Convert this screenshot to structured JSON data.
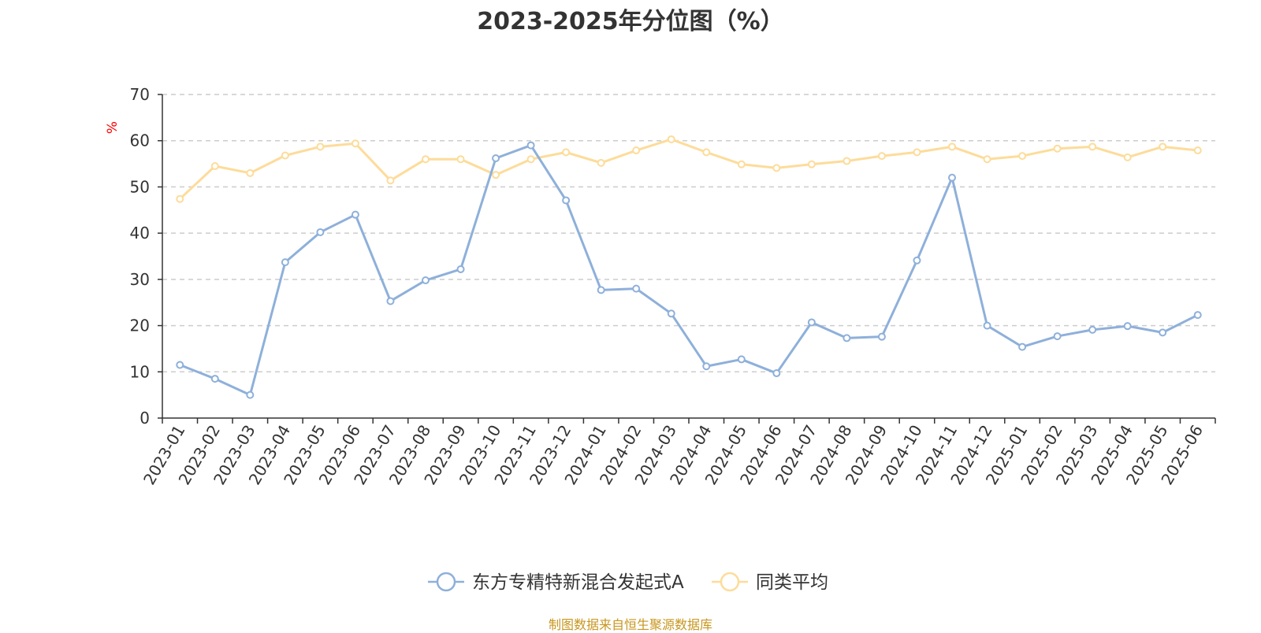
{
  "chart_data": {
    "type": "line",
    "title": "2023-2025年分位图（%）",
    "ylabel": "%",
    "xlabel": "",
    "ylim": [
      0,
      70
    ],
    "yticks": [
      0,
      10,
      20,
      30,
      40,
      50,
      60,
      70
    ],
    "grid": true,
    "legend_position": "bottom",
    "categories": [
      "2023-01",
      "2023-02",
      "2023-03",
      "2023-04",
      "2023-05",
      "2023-06",
      "2023-07",
      "2023-08",
      "2023-09",
      "2023-10",
      "2023-11",
      "2023-12",
      "2024-01",
      "2024-02",
      "2024-03",
      "2024-04",
      "2024-05",
      "2024-06",
      "2024-07",
      "2024-08",
      "2024-09",
      "2024-10",
      "2024-11",
      "2024-12",
      "2025-01",
      "2025-02",
      "2025-03",
      "2025-04",
      "2025-05",
      "2025-06"
    ],
    "series": [
      {
        "name": "东方专精特新混合发起式A",
        "color": "#8eb0da",
        "values": [
          11.5,
          8.5,
          5.0,
          33.7,
          40.2,
          44.0,
          25.3,
          29.8,
          32.2,
          56.2,
          59.0,
          47.1,
          27.7,
          28.0,
          22.6,
          11.2,
          12.7,
          9.7,
          20.7,
          17.3,
          17.6,
          34.1,
          52.0,
          20.0,
          15.4,
          17.7,
          19.1,
          19.9,
          18.5,
          22.3
        ]
      },
      {
        "name": "同类平均",
        "color": "#fddc9a",
        "values": [
          47.4,
          54.5,
          53.0,
          56.8,
          58.7,
          59.4,
          51.4,
          56.0,
          56.0,
          52.6,
          56.0,
          57.5,
          55.2,
          57.9,
          60.3,
          57.5,
          54.9,
          54.1,
          54.9,
          55.6,
          56.7,
          57.5,
          58.7,
          56.0,
          56.7,
          58.3,
          58.7,
          56.4,
          58.7,
          57.9
        ]
      }
    ]
  },
  "source_note": "制图数据来自恒生聚源数据库"
}
